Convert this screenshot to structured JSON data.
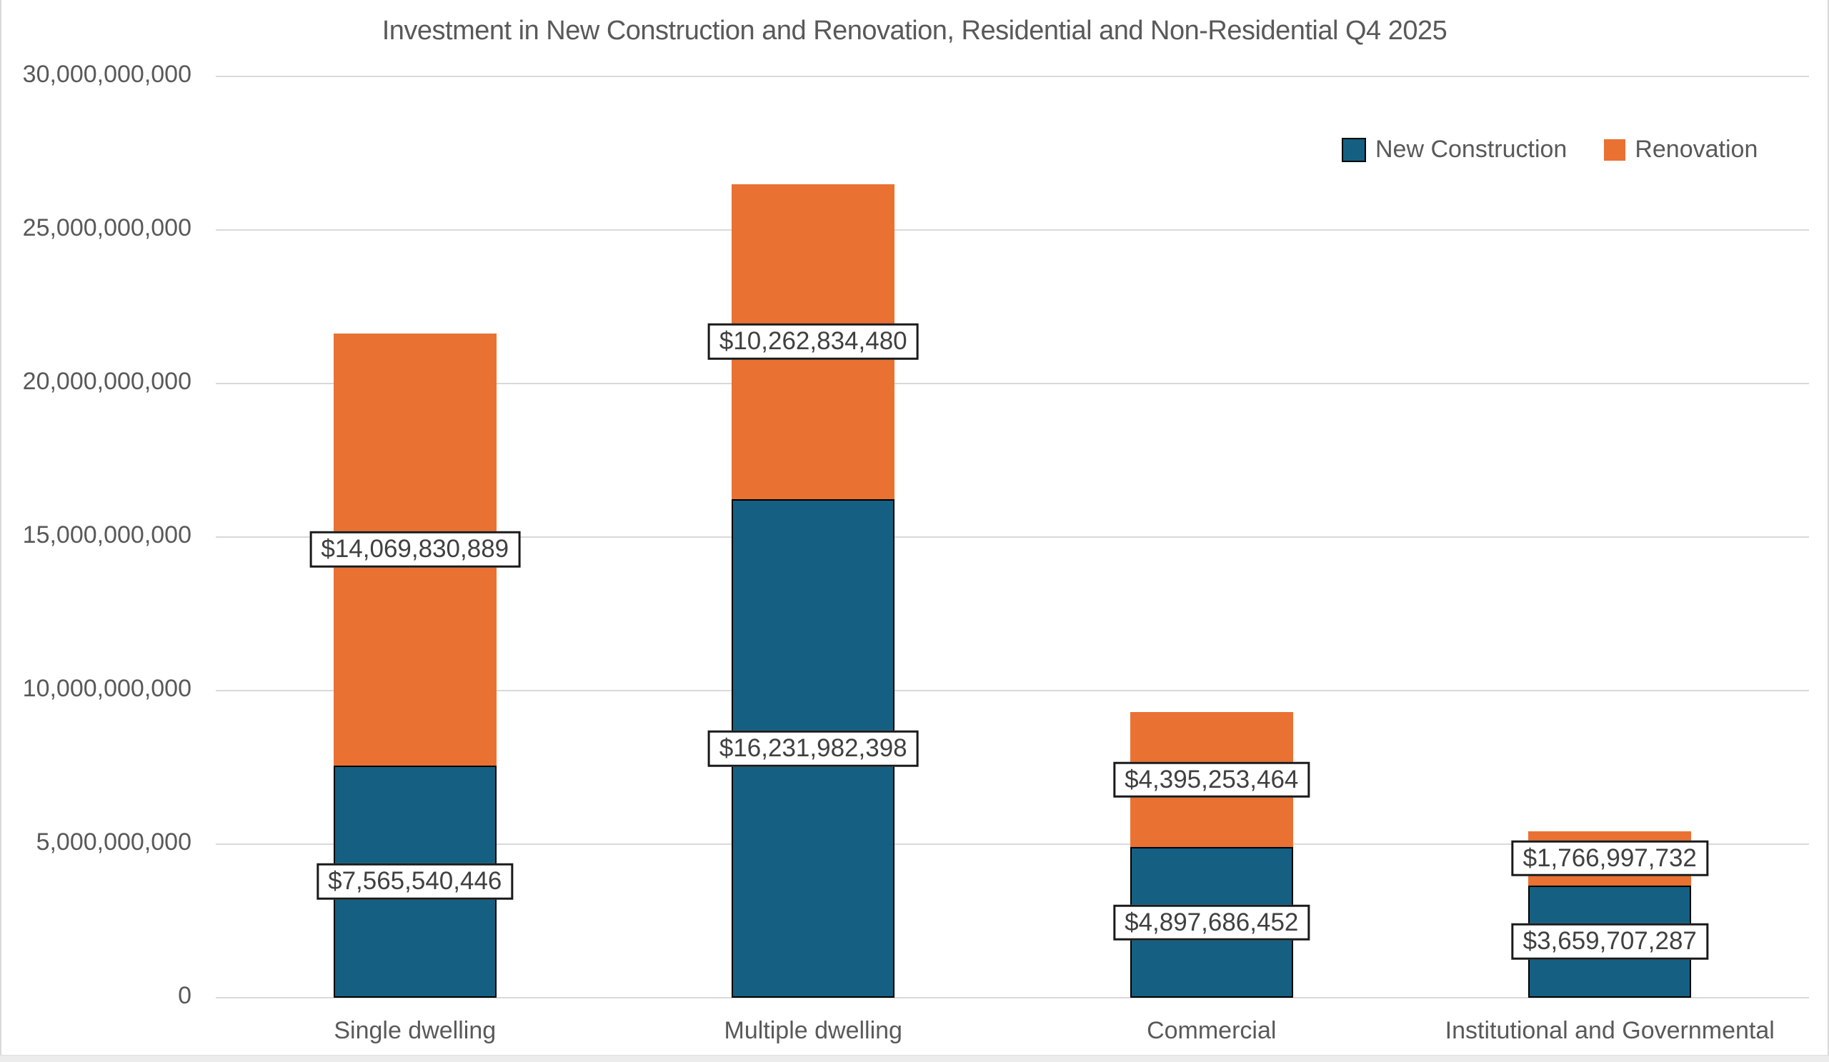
{
  "window": {
    "background": "#ffffff",
    "frame_edge_color": "#d9d9d9",
    "bottom_strip_color": "#ececec"
  },
  "chart_data": {
    "type": "bar",
    "stacked": true,
    "title": "Investment in New Construction and Renovation, Residential and Non-Residential Q4 2025",
    "xlabel": "",
    "ylabel": "",
    "categories": [
      "Single dwelling",
      "Multiple dwelling",
      "Commercial",
      "Institutional and Governmental"
    ],
    "series": [
      {
        "name": "New Construction",
        "color": "#156082",
        "border_color": "#000000",
        "values": [
          7565540446,
          16231982398,
          4897686452,
          3659707287
        ],
        "labels": [
          "$7,565,540,446",
          "$16,231,982,398",
          "$4,897,686,452",
          "$3,659,707,287"
        ]
      },
      {
        "name": "Renovation",
        "color": "#e97132",
        "border_color": null,
        "values": [
          14069830889,
          10262834480,
          4395253464,
          1766997732
        ],
        "labels": [
          "$14,069,830,889",
          "$10,262,834,480",
          "$4,395,253,464",
          "$1,766,997,732"
        ]
      }
    ],
    "totals": [
      21635371335,
      26494816878,
      9292939916,
      5426705019
    ],
    "ylim": [
      0,
      30000000000
    ],
    "ytick_step": 5000000000,
    "ytick_labels": [
      "0",
      "5,000,000,000",
      "10,000,000,000",
      "15,000,000,000",
      "20,000,000,000",
      "25,000,000,000",
      "30,000,000,000"
    ],
    "grid": true,
    "gridline_color": "#d9d9d9",
    "legend_position": "top-right",
    "data_label_style": "white box, dark border, centered in segment",
    "text_color": "#595959",
    "data_label_text_color": "#404040"
  }
}
